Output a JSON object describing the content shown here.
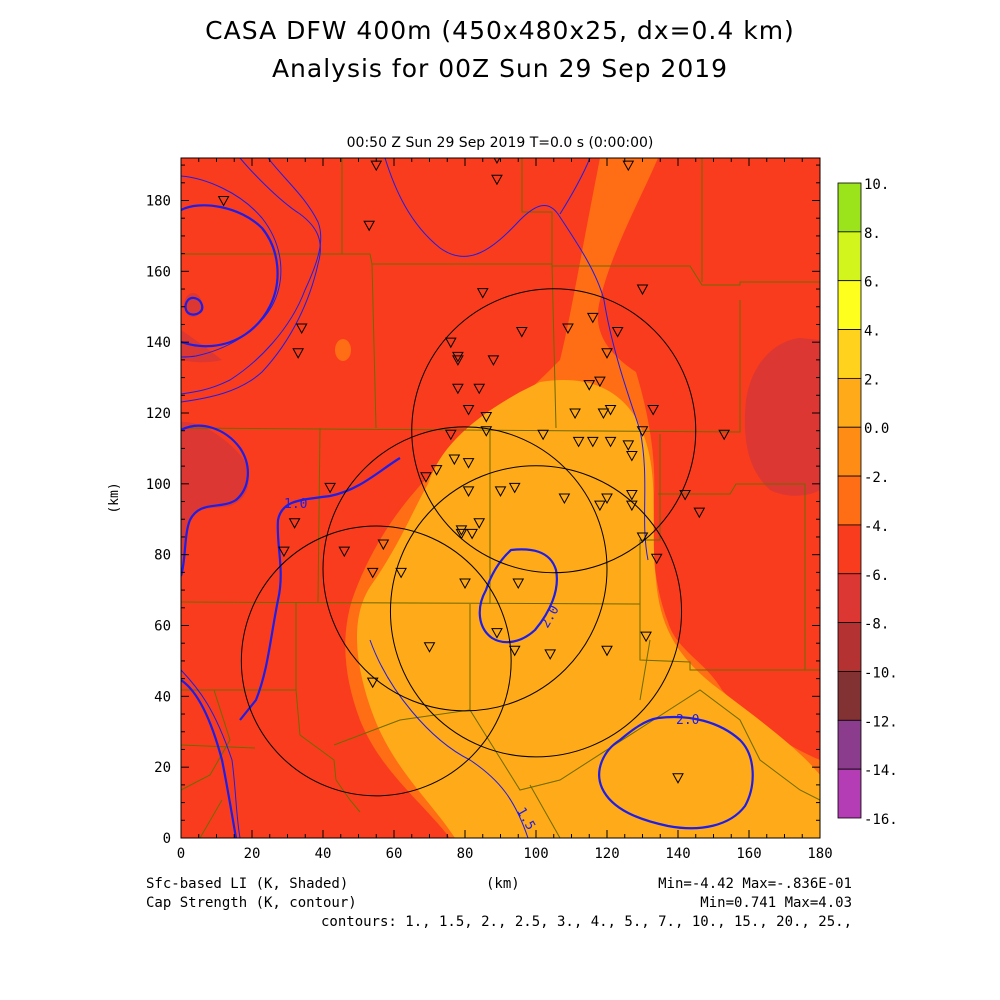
{
  "title_line1": "CASA DFW 400m (450x480x25, dx=0.4 km)",
  "title_line2": "Analysis for 00Z Sun 29 Sep 2019",
  "subtitle": "00:50 Z Sun 29 Sep 2019    T=0.0 s (0:00:00)",
  "xlabel": "(km)",
  "ylabel": "(km)",
  "x_ticks": [
    "0",
    "20",
    "40",
    "60",
    "80",
    "100",
    "120",
    "140",
    "160",
    "180"
  ],
  "y_ticks": [
    "0",
    "20",
    "40",
    "60",
    "80",
    "100",
    "120",
    "140",
    "160",
    "180"
  ],
  "colorbar": {
    "labels": [
      "10.",
      "8.",
      "6.",
      "4.",
      "2.",
      "0.0",
      "-2.",
      "-4.",
      "-6.",
      "-8.",
      "-10.",
      "-12.",
      "-14.",
      "-16."
    ],
    "colors": [
      "#9be31a",
      "#d2f51e",
      "#ffff1e",
      "#ffd21e",
      "#ffaa19",
      "#ff8c14",
      "#ff6e14",
      "#fa3c1e",
      "#dc3732",
      "#b43232",
      "#823232",
      "#8c3c8c",
      "#b43cb4",
      "#dc46dc"
    ]
  },
  "footer": {
    "shaded_label": "Sfc-based LI (K, Shaded)",
    "contour_label": "Cap Strength (K, contour)",
    "shaded_minmax": "Min=-4.42 Max=-.836E-01",
    "contour_minmax": "Min=0.741 Max=4.03",
    "contours": "contours: 1., 1.5, 2., 2.5, 3., 4., 5., 7., 10., 15., 20., 25.,"
  },
  "contour_labels": [
    "1.0",
    "2.0",
    "2.0",
    "1.5"
  ],
  "radar_rings": [
    {
      "x": 55,
      "y": 50,
      "r": 38
    },
    {
      "x": 80,
      "y": 76,
      "r": 40
    },
    {
      "x": 100,
      "y": 64,
      "r": 41
    },
    {
      "x": 105,
      "y": 115,
      "r": 40
    }
  ],
  "stations": [
    [
      12,
      180
    ],
    [
      55,
      190
    ],
    [
      89,
      186
    ],
    [
      89,
      192
    ],
    [
      126,
      190
    ],
    [
      53,
      173
    ],
    [
      85,
      154
    ],
    [
      130,
      155
    ],
    [
      34,
      144
    ],
    [
      33,
      137
    ],
    [
      96,
      143
    ],
    [
      109,
      144
    ],
    [
      116,
      147
    ],
    [
      123,
      143
    ],
    [
      120,
      137
    ],
    [
      76,
      140
    ],
    [
      78,
      136
    ],
    [
      78,
      135
    ],
    [
      88,
      135
    ],
    [
      118,
      129
    ],
    [
      115,
      128
    ],
    [
      78,
      127
    ],
    [
      84,
      127
    ],
    [
      81,
      121
    ],
    [
      86,
      119
    ],
    [
      111,
      120
    ],
    [
      121,
      121
    ],
    [
      119,
      120
    ],
    [
      133,
      121
    ],
    [
      76,
      114
    ],
    [
      86,
      115
    ],
    [
      102,
      114
    ],
    [
      112,
      112
    ],
    [
      116,
      112
    ],
    [
      121,
      112
    ],
    [
      126,
      111
    ],
    [
      130,
      115
    ],
    [
      127,
      108
    ],
    [
      77,
      107
    ],
    [
      81,
      106
    ],
    [
      72,
      104
    ],
    [
      69,
      102
    ],
    [
      42,
      99
    ],
    [
      81,
      98
    ],
    [
      90,
      98
    ],
    [
      94,
      99
    ],
    [
      108,
      96
    ],
    [
      118,
      94
    ],
    [
      120,
      96
    ],
    [
      127,
      97
    ],
    [
      127,
      94
    ],
    [
      142,
      97
    ],
    [
      146,
      92
    ],
    [
      32,
      89
    ],
    [
      84,
      89
    ],
    [
      79,
      87
    ],
    [
      79,
      86
    ],
    [
      82,
      86
    ],
    [
      29,
      81
    ],
    [
      46,
      81
    ],
    [
      57,
      83
    ],
    [
      130,
      85
    ],
    [
      134,
      79
    ],
    [
      62,
      75
    ],
    [
      54,
      75
    ],
    [
      80,
      72
    ],
    [
      95,
      72
    ],
    [
      89,
      58
    ],
    [
      131,
      57
    ],
    [
      70,
      54
    ],
    [
      94,
      53
    ],
    [
      104,
      52
    ],
    [
      120,
      53
    ],
    [
      54,
      44
    ],
    [
      140,
      17
    ],
    [
      153,
      114
    ]
  ]
}
